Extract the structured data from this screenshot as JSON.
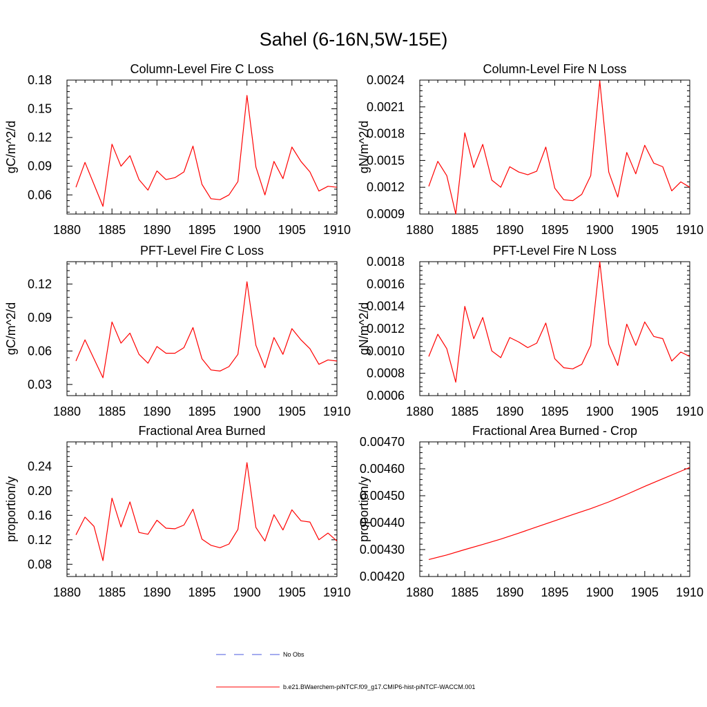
{
  "title": "Sahel (6-16N,5W-15E)",
  "legend": {
    "items": [
      {
        "label": "No Obs",
        "color": "#4a5adf",
        "style": "dashed"
      },
      {
        "label": "b.e21.BWaerchem-piNTCF.f09_g17.CMIP6-hist-piNTCF-WACCM.001",
        "color": "#ff0000",
        "style": "solid"
      }
    ]
  },
  "chart_data": [
    {
      "type": "line",
      "title": "Column-Level Fire C Loss",
      "ylabel": "gC/m^2/d",
      "xlim": [
        1880,
        1910
      ],
      "ylim": [
        0.04,
        0.18
      ],
      "xticks": [
        "1880",
        "1885",
        "1890",
        "1895",
        "1900",
        "1905",
        "1910"
      ],
      "yticks": [
        "0.06",
        "0.09",
        "0.12",
        "0.15",
        "0.18"
      ],
      "series": [
        {
          "color": "#ff0000",
          "x": [
            1881,
            1882,
            1883,
            1884,
            1885,
            1886,
            1887,
            1888,
            1889,
            1890,
            1891,
            1892,
            1893,
            1894,
            1895,
            1896,
            1897,
            1898,
            1899,
            1900,
            1901,
            1902,
            1903,
            1904,
            1905,
            1906,
            1907,
            1908,
            1909,
            1910
          ],
          "values": [
            0.068,
            0.094,
            0.071,
            0.048,
            0.113,
            0.09,
            0.101,
            0.076,
            0.065,
            0.085,
            0.076,
            0.078,
            0.084,
            0.111,
            0.071,
            0.056,
            0.055,
            0.06,
            0.074,
            0.164,
            0.089,
            0.06,
            0.095,
            0.077,
            0.11,
            0.095,
            0.084,
            0.064,
            0.069,
            0.068
          ]
        }
      ]
    },
    {
      "type": "line",
      "title": "Column-Level Fire N Loss",
      "ylabel": "gN/m^2/d",
      "xlim": [
        1880,
        1910
      ],
      "ylim": [
        0.0009,
        0.0024
      ],
      "xticks": [
        "1880",
        "1885",
        "1890",
        "1895",
        "1900",
        "1905",
        "1910"
      ],
      "yticks": [
        "0.0009",
        "0.0012",
        "0.0015",
        "0.0018",
        "0.0021",
        "0.0024"
      ],
      "series": [
        {
          "color": "#ff0000",
          "x": [
            1881,
            1882,
            1883,
            1884,
            1885,
            1886,
            1887,
            1888,
            1889,
            1890,
            1891,
            1892,
            1893,
            1894,
            1895,
            1896,
            1897,
            1898,
            1899,
            1900,
            1901,
            1902,
            1903,
            1904,
            1905,
            1906,
            1907,
            1908,
            1909,
            1910
          ],
          "values": [
            0.00121,
            0.00149,
            0.00133,
            0.0009,
            0.00181,
            0.00142,
            0.00168,
            0.00128,
            0.0012,
            0.00143,
            0.00137,
            0.00134,
            0.00138,
            0.00165,
            0.00119,
            0.00106,
            0.00105,
            0.00112,
            0.00133,
            0.00239,
            0.00137,
            0.00109,
            0.00159,
            0.00135,
            0.00167,
            0.00147,
            0.00143,
            0.00116,
            0.00126,
            0.0012
          ]
        }
      ]
    },
    {
      "type": "line",
      "title": "PFT-Level Fire C Loss",
      "ylabel": "gC/m^2/d",
      "xlim": [
        1880,
        1910
      ],
      "ylim": [
        0.02,
        0.14
      ],
      "xticks": [
        "1880",
        "1885",
        "1890",
        "1895",
        "1900",
        "1905",
        "1910"
      ],
      "yticks": [
        "0.03",
        "0.06",
        "0.09",
        "0.12"
      ],
      "series": [
        {
          "color": "#ff0000",
          "x": [
            1881,
            1882,
            1883,
            1884,
            1885,
            1886,
            1887,
            1888,
            1889,
            1890,
            1891,
            1892,
            1893,
            1894,
            1895,
            1896,
            1897,
            1898,
            1899,
            1900,
            1901,
            1902,
            1903,
            1904,
            1905,
            1906,
            1907,
            1908,
            1909,
            1910
          ],
          "values": [
            0.051,
            0.07,
            0.053,
            0.036,
            0.086,
            0.067,
            0.076,
            0.057,
            0.049,
            0.064,
            0.058,
            0.058,
            0.063,
            0.081,
            0.053,
            0.043,
            0.042,
            0.046,
            0.057,
            0.122,
            0.065,
            0.045,
            0.072,
            0.057,
            0.08,
            0.07,
            0.062,
            0.048,
            0.052,
            0.051
          ]
        }
      ]
    },
    {
      "type": "line",
      "title": "PFT-Level Fire N Loss",
      "ylabel": "gN/m^2/d",
      "xlim": [
        1880,
        1910
      ],
      "ylim": [
        0.0006,
        0.0018
      ],
      "xticks": [
        "1880",
        "1885",
        "1890",
        "1895",
        "1900",
        "1905",
        "1910"
      ],
      "yticks": [
        "0.0006",
        "0.0008",
        "0.0010",
        "0.0012",
        "0.0014",
        "0.0016",
        "0.0018"
      ],
      "series": [
        {
          "color": "#ff0000",
          "x": [
            1881,
            1882,
            1883,
            1884,
            1885,
            1886,
            1887,
            1888,
            1889,
            1890,
            1891,
            1892,
            1893,
            1894,
            1895,
            1896,
            1897,
            1898,
            1899,
            1900,
            1901,
            1902,
            1903,
            1904,
            1905,
            1906,
            1907,
            1908,
            1909,
            1910
          ],
          "values": [
            0.00095,
            0.00115,
            0.00102,
            0.00072,
            0.0014,
            0.00111,
            0.0013,
            0.001,
            0.00094,
            0.00112,
            0.00108,
            0.00103,
            0.00107,
            0.00125,
            0.00093,
            0.00085,
            0.00084,
            0.00088,
            0.00105,
            0.0018,
            0.00106,
            0.00087,
            0.00124,
            0.00105,
            0.00126,
            0.00113,
            0.00111,
            0.00091,
            0.00099,
            0.00095
          ]
        }
      ]
    },
    {
      "type": "line",
      "title": "Fractional Area Burned",
      "ylabel": "proportion/y",
      "xlim": [
        1880,
        1910
      ],
      "ylim": [
        0.06,
        0.28
      ],
      "xticks": [
        "1880",
        "1885",
        "1890",
        "1895",
        "1900",
        "1905",
        "1910"
      ],
      "yticks": [
        "0.08",
        "0.12",
        "0.16",
        "0.20",
        "0.24"
      ],
      "series": [
        {
          "color": "#ff0000",
          "x": [
            1881,
            1882,
            1883,
            1884,
            1885,
            1886,
            1887,
            1888,
            1889,
            1890,
            1891,
            1892,
            1893,
            1894,
            1895,
            1896,
            1897,
            1898,
            1899,
            1900,
            1901,
            1902,
            1903,
            1904,
            1905,
            1906,
            1907,
            1908,
            1909,
            1910
          ],
          "values": [
            0.128,
            0.157,
            0.142,
            0.086,
            0.188,
            0.141,
            0.182,
            0.132,
            0.129,
            0.152,
            0.139,
            0.138,
            0.144,
            0.17,
            0.121,
            0.111,
            0.107,
            0.113,
            0.137,
            0.246,
            0.14,
            0.118,
            0.161,
            0.136,
            0.169,
            0.151,
            0.149,
            0.12,
            0.131,
            0.118
          ]
        }
      ]
    },
    {
      "type": "line",
      "title": "Fractional Area Burned - Crop",
      "ylabel": "proportion/y",
      "xlim": [
        1880,
        1910
      ],
      "ylim": [
        0.0042,
        0.0047
      ],
      "xticks": [
        "1880",
        "1885",
        "1890",
        "1895",
        "1900",
        "1905",
        "1910"
      ],
      "yticks": [
        "0.00420",
        "0.00430",
        "0.00440",
        "0.00450",
        "0.00460",
        "0.00470"
      ],
      "series": [
        {
          "color": "#ff0000",
          "x": [
            1881,
            1883,
            1885,
            1887,
            1889,
            1891,
            1893,
            1895,
            1897,
            1899,
            1901,
            1903,
            1905,
            1907,
            1909,
            1910
          ],
          "values": [
            0.004263,
            0.00428,
            0.0043,
            0.004319,
            0.004339,
            0.004361,
            0.004384,
            0.004407,
            0.00443,
            0.004452,
            0.004477,
            0.004505,
            0.004535,
            0.004563,
            0.004591,
            0.004605
          ]
        }
      ]
    }
  ]
}
